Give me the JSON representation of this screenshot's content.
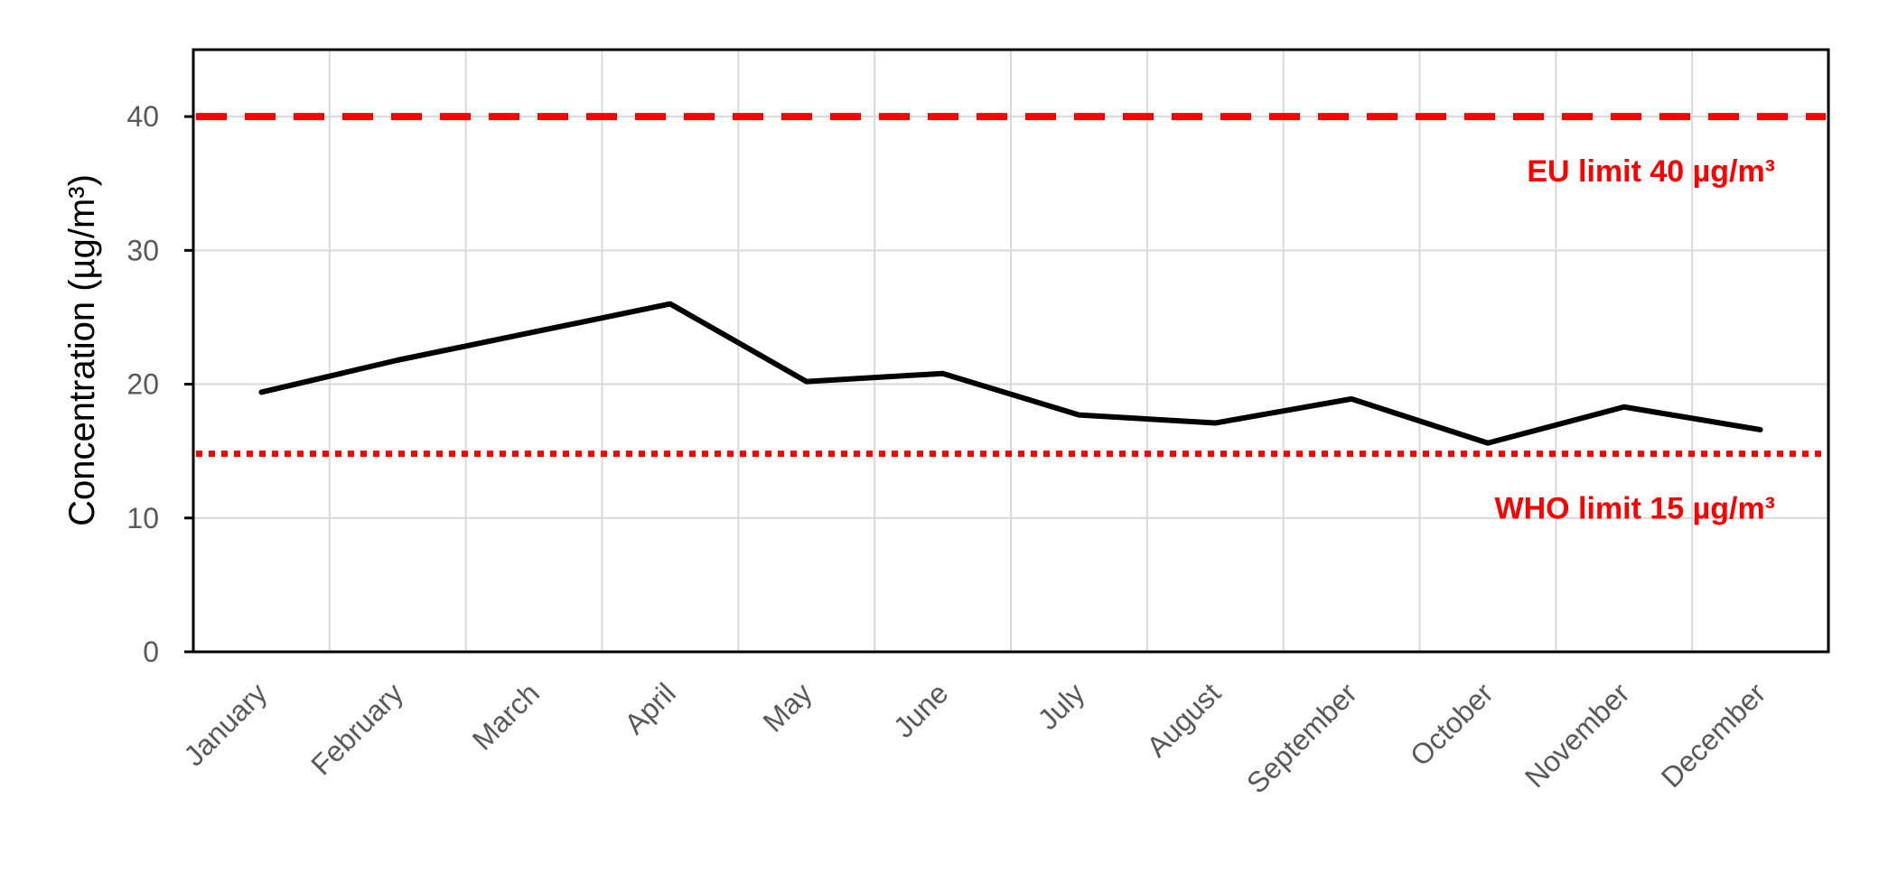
{
  "chart_data": {
    "type": "line",
    "title": "",
    "xlabel": "",
    "ylabel": "Concentration (µg/m³)",
    "categories": [
      "January",
      "February",
      "March",
      "April",
      "May",
      "June",
      "July",
      "August",
      "September",
      "October",
      "November",
      "December"
    ],
    "series": [
      {
        "values": [
          19.4,
          21.8,
          23.9,
          26.0,
          20.2,
          20.8,
          17.7,
          17.1,
          18.9,
          15.6,
          18.3,
          16.6
        ],
        "color": "#000000"
      }
    ],
    "ylim": [
      0,
      45
    ],
    "yticks": [
      0,
      10,
      20,
      30,
      40
    ],
    "grid": true,
    "legend": "none",
    "reference_lines": [
      {
        "value": 40,
        "label": "EU limit 40 µg/m³",
        "style": "dashed",
        "color": "#ff0000"
      },
      {
        "value": 14.8,
        "label": "WHO limit 15 µg/m³",
        "style": "dotted",
        "color": "#ff0000"
      }
    ]
  }
}
